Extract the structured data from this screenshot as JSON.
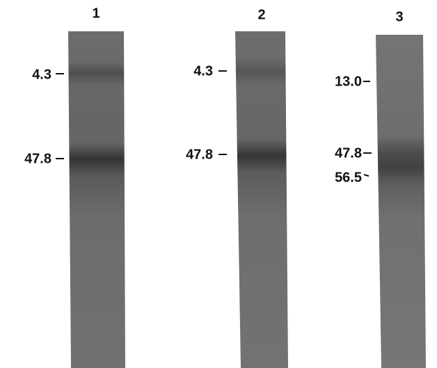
{
  "lanes": [
    {
      "label": "1",
      "bands": [
        "4.3",
        "47.8"
      ]
    },
    {
      "label": "2",
      "bands": [
        "4.3",
        "47.8"
      ]
    },
    {
      "label": "3",
      "bands": [
        "13.0",
        "47.8",
        "56.5"
      ]
    }
  ]
}
